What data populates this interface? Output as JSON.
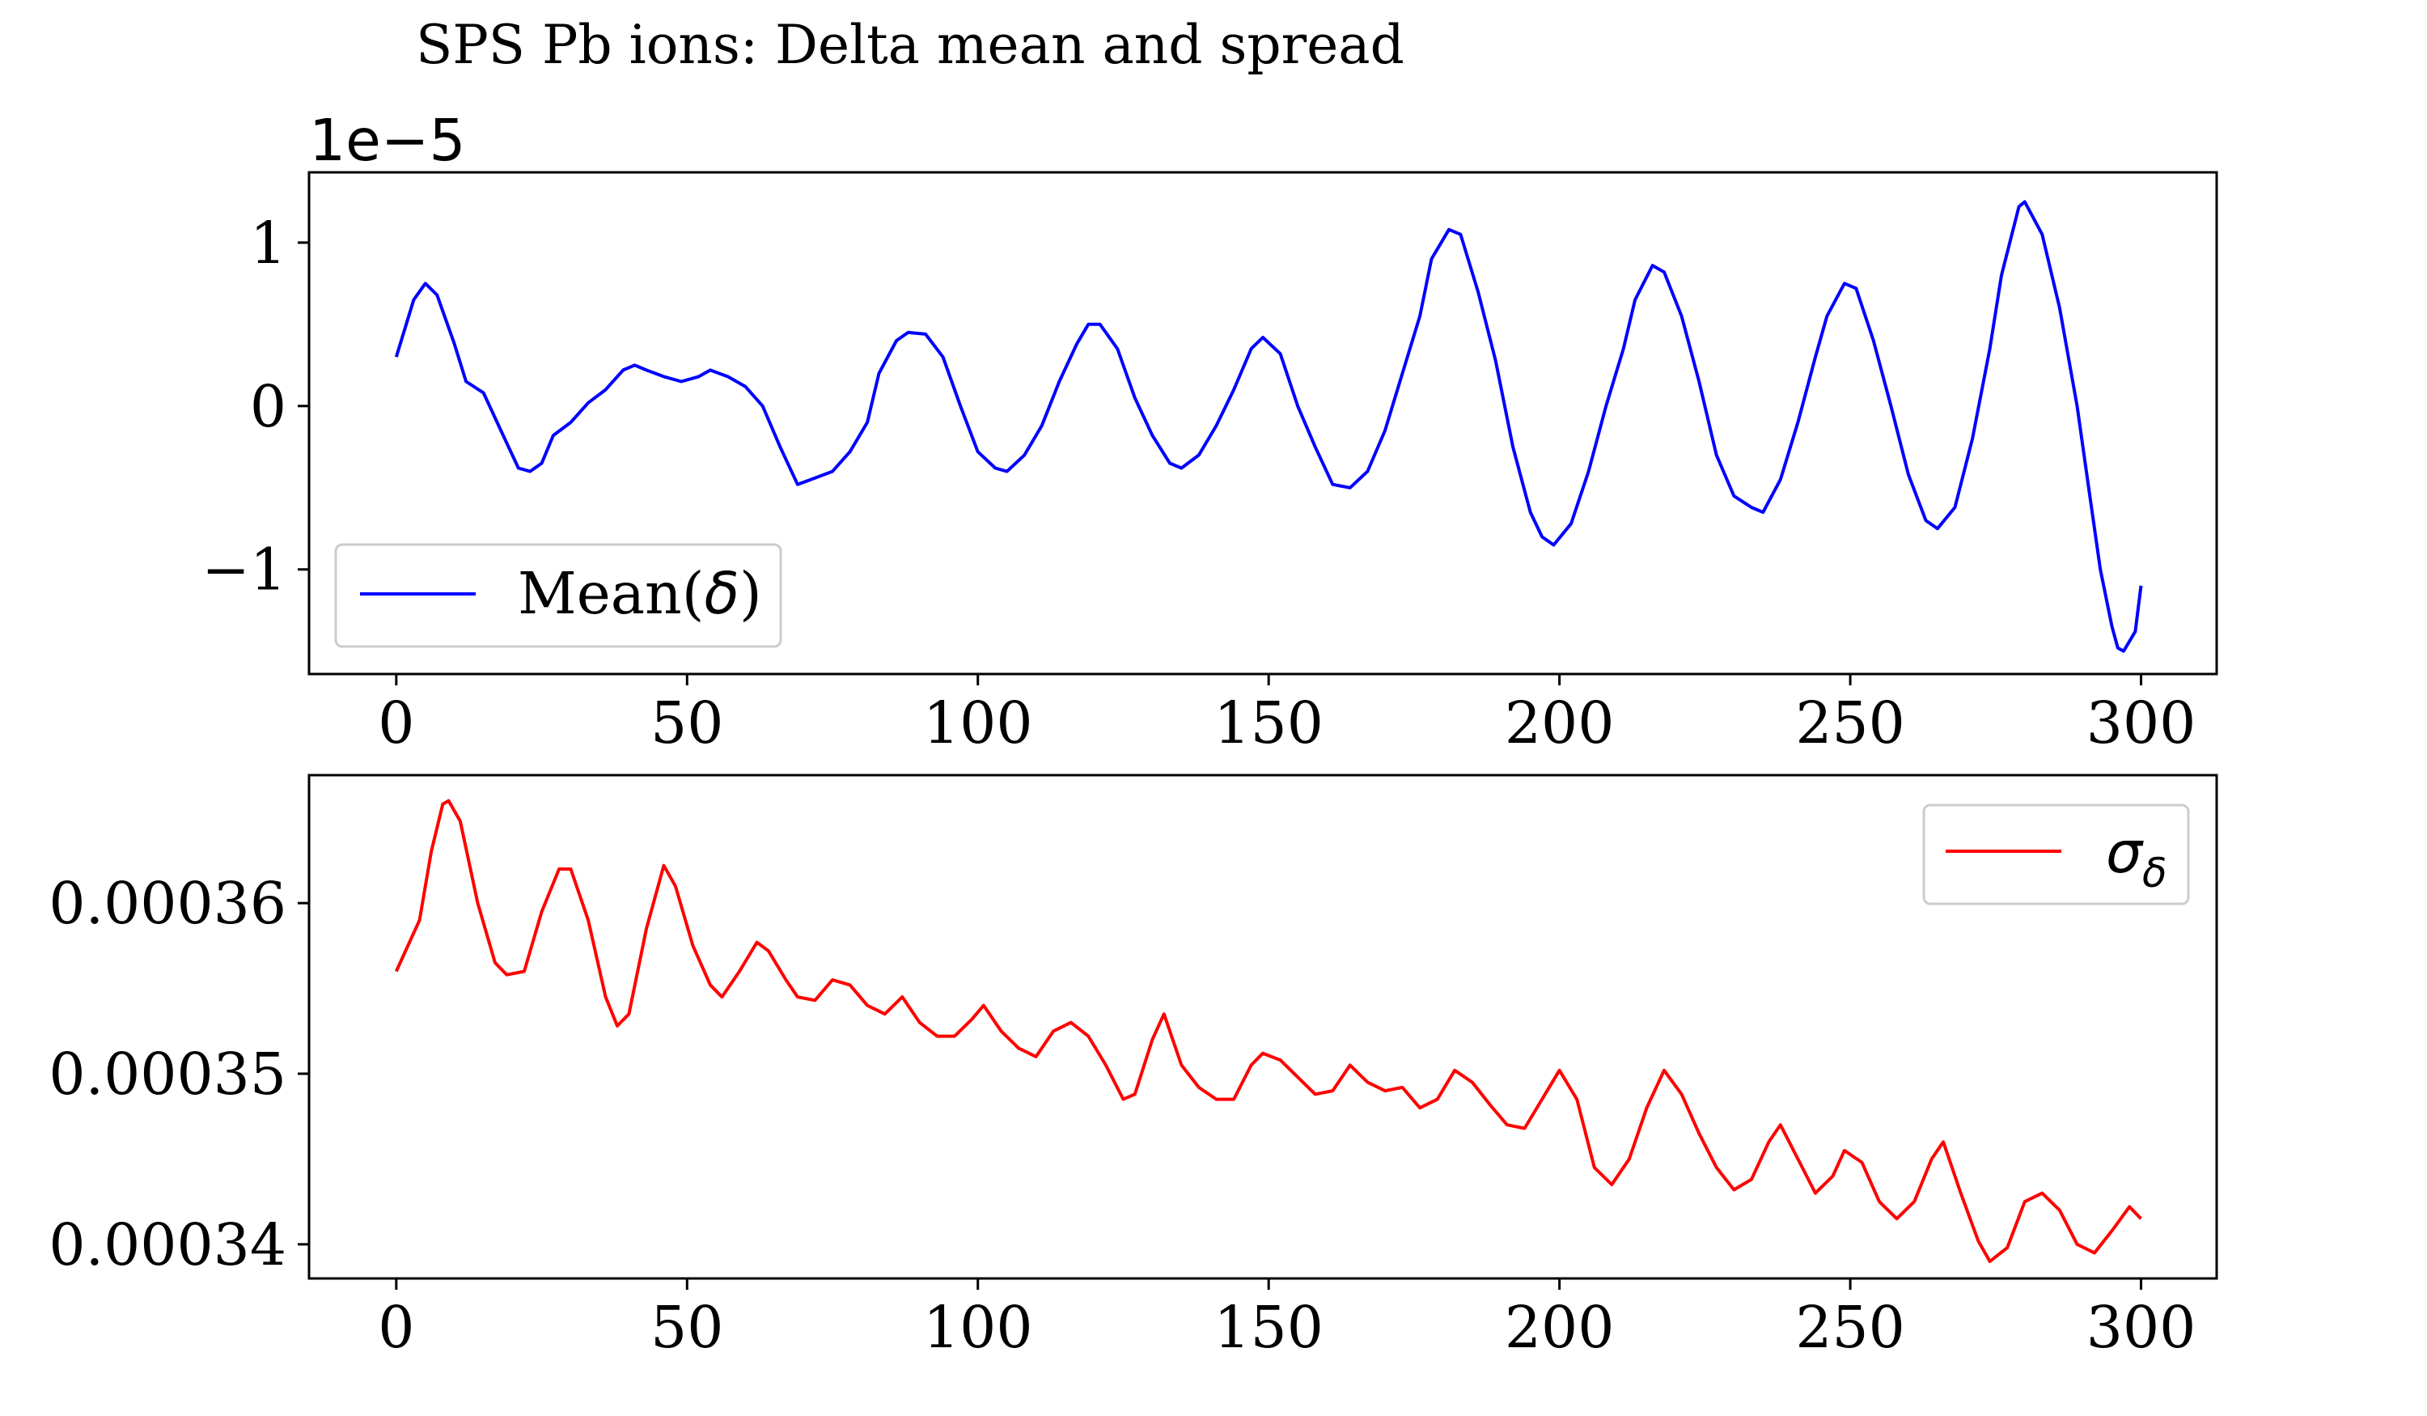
{
  "figure": {
    "title": "SPS Pb ions: Delta mean and spread"
  },
  "chart_data": [
    {
      "type": "line",
      "offset_label": "1e−5",
      "xlim": [
        -15,
        313
      ],
      "ylim": [
        -1.64,
        1.43
      ],
      "xticks": [
        0,
        50,
        100,
        150,
        200,
        250,
        300
      ],
      "xtick_labels": [
        "0",
        "50",
        "100",
        "150",
        "200",
        "250",
        "300"
      ],
      "yticks": [
        1,
        0,
        -1
      ],
      "ytick_labels": [
        "1",
        "0",
        "−1"
      ],
      "legend": {
        "location": "lower left",
        "label_text": "Mean(",
        "label_symbol": "δ",
        "label_close": ")"
      },
      "series": [
        {
          "name": "Mean(δ)",
          "color": "#0000ff",
          "points": [
            [
              0,
              0.3
            ],
            [
              3,
              0.65
            ],
            [
              5,
              0.75
            ],
            [
              7,
              0.68
            ],
            [
              10,
              0.38
            ],
            [
              12,
              0.15
            ],
            [
              15,
              0.08
            ],
            [
              18,
              -0.15
            ],
            [
              21,
              -0.38
            ],
            [
              23,
              -0.4
            ],
            [
              25,
              -0.35
            ],
            [
              27,
              -0.18
            ],
            [
              30,
              -0.1
            ],
            [
              33,
              0.02
            ],
            [
              36,
              0.1
            ],
            [
              39,
              0.22
            ],
            [
              41,
              0.25
            ],
            [
              43,
              0.22
            ],
            [
              46,
              0.18
            ],
            [
              49,
              0.15
            ],
            [
              52,
              0.18
            ],
            [
              54,
              0.22
            ],
            [
              57,
              0.18
            ],
            [
              60,
              0.12
            ],
            [
              63,
              0.0
            ],
            [
              66,
              -0.25
            ],
            [
              69,
              -0.48
            ],
            [
              72,
              -0.44
            ],
            [
              75,
              -0.4
            ],
            [
              78,
              -0.28
            ],
            [
              81,
              -0.1
            ],
            [
              83,
              0.2
            ],
            [
              86,
              0.4
            ],
            [
              88,
              0.45
            ],
            [
              91,
              0.44
            ],
            [
              94,
              0.3
            ],
            [
              97,
              0.0
            ],
            [
              100,
              -0.28
            ],
            [
              103,
              -0.38
            ],
            [
              105,
              -0.4
            ],
            [
              108,
              -0.3
            ],
            [
              111,
              -0.12
            ],
            [
              114,
              0.15
            ],
            [
              117,
              0.38
            ],
            [
              119,
              0.5
            ],
            [
              121,
              0.5
            ],
            [
              124,
              0.35
            ],
            [
              127,
              0.05
            ],
            [
              130,
              -0.18
            ],
            [
              133,
              -0.35
            ],
            [
              135,
              -0.38
            ],
            [
              138,
              -0.3
            ],
            [
              141,
              -0.12
            ],
            [
              144,
              0.1
            ],
            [
              147,
              0.35
            ],
            [
              149,
              0.42
            ],
            [
              152,
              0.32
            ],
            [
              155,
              0.0
            ],
            [
              158,
              -0.25
            ],
            [
              161,
              -0.48
            ],
            [
              164,
              -0.5
            ],
            [
              167,
              -0.4
            ],
            [
              170,
              -0.15
            ],
            [
              173,
              0.2
            ],
            [
              176,
              0.55
            ],
            [
              178,
              0.9
            ],
            [
              181,
              1.08
            ],
            [
              183,
              1.05
            ],
            [
              186,
              0.7
            ],
            [
              189,
              0.28
            ],
            [
              192,
              -0.25
            ],
            [
              195,
              -0.65
            ],
            [
              197,
              -0.8
            ],
            [
              199,
              -0.85
            ],
            [
              202,
              -0.72
            ],
            [
              205,
              -0.4
            ],
            [
              208,
              0.0
            ],
            [
              211,
              0.35
            ],
            [
              213,
              0.65
            ],
            [
              216,
              0.86
            ],
            [
              218,
              0.82
            ],
            [
              221,
              0.55
            ],
            [
              224,
              0.15
            ],
            [
              227,
              -0.3
            ],
            [
              230,
              -0.55
            ],
            [
              233,
              -0.62
            ],
            [
              235,
              -0.65
            ],
            [
              238,
              -0.45
            ],
            [
              241,
              -0.1
            ],
            [
              244,
              0.3
            ],
            [
              246,
              0.55
            ],
            [
              249,
              0.75
            ],
            [
              251,
              0.72
            ],
            [
              254,
              0.4
            ],
            [
              257,
              0.0
            ],
            [
              260,
              -0.42
            ],
            [
              263,
              -0.7
            ],
            [
              265,
              -0.75
            ],
            [
              268,
              -0.62
            ],
            [
              271,
              -0.2
            ],
            [
              274,
              0.35
            ],
            [
              276,
              0.8
            ],
            [
              279,
              1.22
            ],
            [
              280,
              1.25
            ],
            [
              283,
              1.05
            ],
            [
              286,
              0.6
            ],
            [
              289,
              0.0
            ],
            [
              291,
              -0.5
            ],
            [
              293,
              -1.0
            ],
            [
              295,
              -1.35
            ],
            [
              296,
              -1.48
            ],
            [
              297,
              -1.5
            ],
            [
              299,
              -1.38
            ],
            [
              300,
              -1.1
            ]
          ]
        }
      ]
    },
    {
      "type": "line",
      "xlim": [
        -15,
        313
      ],
      "ylim": [
        0.000338,
        0.0003675
      ],
      "xticks": [
        0,
        50,
        100,
        150,
        200,
        250,
        300
      ],
      "xtick_labels": [
        "0",
        "50",
        "100",
        "150",
        "200",
        "250",
        "300"
      ],
      "yticks": [
        0.00036,
        0.00035,
        0.00034
      ],
      "ytick_labels": [
        "0.00036",
        "0.00035",
        "0.00034"
      ],
      "legend": {
        "location": "upper right",
        "label_text": "σ",
        "label_sub": "δ"
      },
      "series": [
        {
          "name": "σδ",
          "color": "#ff0000",
          "points": [
            [
              0,
              0.000356
            ],
            [
              2,
              0.0003575
            ],
            [
              4,
              0.000359
            ],
            [
              6,
              0.000363
            ],
            [
              8,
              0.0003658
            ],
            [
              9,
              0.000366
            ],
            [
              11,
              0.0003648
            ],
            [
              14,
              0.00036
            ],
            [
              17,
              0.0003565
            ],
            [
              19,
              0.0003558
            ],
            [
              22,
              0.000356
            ],
            [
              25,
              0.0003595
            ],
            [
              28,
              0.000362
            ],
            [
              30,
              0.000362
            ],
            [
              33,
              0.000359
            ],
            [
              36,
              0.0003545
            ],
            [
              38,
              0.0003528
            ],
            [
              40,
              0.0003535
            ],
            [
              43,
              0.0003585
            ],
            [
              46,
              0.0003622
            ],
            [
              48,
              0.000361
            ],
            [
              51,
              0.0003575
            ],
            [
              54,
              0.0003552
            ],
            [
              56,
              0.0003545
            ],
            [
              59,
              0.000356
            ],
            [
              62,
              0.0003577
            ],
            [
              64,
              0.0003572
            ],
            [
              67,
              0.0003555
            ],
            [
              69,
              0.0003545
            ],
            [
              72,
              0.0003543
            ],
            [
              75,
              0.0003555
            ],
            [
              78,
              0.0003552
            ],
            [
              81,
              0.000354
            ],
            [
              84,
              0.0003535
            ],
            [
              87,
              0.0003545
            ],
            [
              90,
              0.000353
            ],
            [
              93,
              0.0003522
            ],
            [
              96,
              0.0003522
            ],
            [
              99,
              0.0003532
            ],
            [
              101,
              0.000354
            ],
            [
              104,
              0.0003525
            ],
            [
              107,
              0.0003515
            ],
            [
              110,
              0.000351
            ],
            [
              113,
              0.0003525
            ],
            [
              116,
              0.000353
            ],
            [
              119,
              0.0003522
            ],
            [
              122,
              0.0003505
            ],
            [
              125,
              0.0003485
            ],
            [
              127,
              0.0003488
            ],
            [
              130,
              0.000352
            ],
            [
              132,
              0.0003535
            ],
            [
              135,
              0.0003505
            ],
            [
              138,
              0.0003492
            ],
            [
              141,
              0.0003485
            ],
            [
              144,
              0.0003485
            ],
            [
              147,
              0.0003505
            ],
            [
              149,
              0.0003512
            ],
            [
              152,
              0.0003508
            ],
            [
              155,
              0.0003498
            ],
            [
              158,
              0.0003488
            ],
            [
              161,
              0.000349
            ],
            [
              164,
              0.0003505
            ],
            [
              167,
              0.0003495
            ],
            [
              170,
              0.000349
            ],
            [
              173,
              0.0003492
            ],
            [
              176,
              0.000348
            ],
            [
              179,
              0.0003485
            ],
            [
              182,
              0.0003502
            ],
            [
              185,
              0.0003495
            ],
            [
              188,
              0.0003482
            ],
            [
              191,
              0.000347
            ],
            [
              194,
              0.0003468
            ],
            [
              197,
              0.0003485
            ],
            [
              200,
              0.0003502
            ],
            [
              203,
              0.0003485
            ],
            [
              206,
              0.0003445
            ],
            [
              209,
              0.0003435
            ],
            [
              212,
              0.000345
            ],
            [
              215,
              0.000348
            ],
            [
              218,
              0.0003502
            ],
            [
              221,
              0.0003488
            ],
            [
              224,
              0.0003465
            ],
            [
              227,
              0.0003445
            ],
            [
              230,
              0.0003432
            ],
            [
              233,
              0.0003438
            ],
            [
              236,
              0.000346
            ],
            [
              238,
              0.000347
            ],
            [
              241,
              0.000345
            ],
            [
              244,
              0.000343
            ],
            [
              247,
              0.000344
            ],
            [
              249,
              0.0003455
            ],
            [
              252,
              0.0003448
            ],
            [
              255,
              0.0003425
            ],
            [
              258,
              0.0003415
            ],
            [
              261,
              0.0003425
            ],
            [
              264,
              0.000345
            ],
            [
              266,
              0.000346
            ],
            [
              269,
              0.000343
            ],
            [
              272,
              0.0003402
            ],
            [
              274,
              0.000339
            ],
            [
              277,
              0.0003398
            ],
            [
              280,
              0.0003425
            ],
            [
              283,
              0.000343
            ],
            [
              286,
              0.000342
            ],
            [
              289,
              0.00034
            ],
            [
              292,
              0.0003395
            ],
            [
              295,
              0.0003408
            ],
            [
              298,
              0.0003422
            ],
            [
              300,
              0.0003415
            ]
          ]
        }
      ]
    }
  ]
}
